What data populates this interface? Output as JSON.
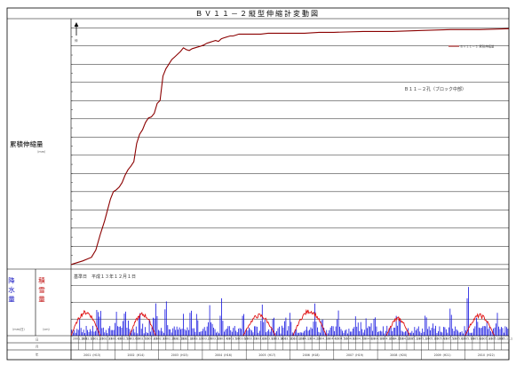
{
  "chart_data": [
    {
      "type": "line",
      "title": "ＢＶ１１－２縦型伸縮計変動図",
      "ylabel": "累積伸縮量",
      "ylabel_unit": "（mm）",
      "y_arrow_label": "伸",
      "legend": {
        "entries": [
          "ＢＶ１１－２ 累積伸縮量"
        ],
        "placement": "top-right"
      },
      "annotation": "Ｂ１１－２孔（ブロック中部）",
      "series_color": "#8b0000",
      "ylim": [
        -5,
        270
      ],
      "y_tick_step": 10,
      "grid": true,
      "series": [
        {
          "name": "ＢＶ１１－２ 累積伸縮量",
          "x": [
            0,
            4,
            8,
            11,
            14,
            17,
            20,
            23,
            25,
            27,
            29,
            31,
            33,
            35,
            37,
            39,
            41,
            43,
            45,
            47,
            49,
            51,
            53,
            55,
            57,
            59,
            61,
            63,
            65,
            67,
            69,
            71,
            73,
            75,
            77,
            79,
            81,
            83,
            85,
            87,
            89,
            91,
            93,
            95,
            97,
            99,
            101,
            103,
            105,
            107,
            109,
            111,
            113,
            115,
            118,
            121,
            125,
            130,
            135,
            140,
            145,
            150,
            155,
            160,
            170,
            180,
            200,
            220,
            240,
            260,
            280,
            300
          ],
          "values": [
            0,
            2,
            4,
            6,
            8,
            16,
            33,
            48,
            60,
            72,
            80,
            82,
            85,
            90,
            98,
            104,
            108,
            113,
            133,
            143,
            148,
            156,
            161,
            162,
            166,
            177,
            180,
            207,
            215,
            220,
            225,
            228,
            231,
            234,
            238,
            236,
            235,
            237,
            238,
            239,
            240,
            241,
            243,
            244,
            245,
            246,
            245,
            248,
            249,
            250,
            251,
            251,
            252,
            253,
            253,
            253,
            253,
            253,
            254,
            254,
            254,
            254,
            254,
            254,
            255,
            255,
            256,
            256,
            257,
            258,
            258,
            259
          ]
        }
      ]
    },
    {
      "type": "bar",
      "ylabel_left": "降水量",
      "ylabel_left_unit": "（mm/日）",
      "ylabel_right": "積雪量",
      "ylabel_right_unit": "（cm）",
      "ylim": [
        0,
        120
      ],
      "start_note": "基準日　平成１３年１２月１日",
      "series": [
        {
          "name": "降水量",
          "color": "#1010e0"
        },
        {
          "name": "積雪量",
          "color": "#e01010"
        }
      ],
      "precip_peaks": [
        {
          "x": 6,
          "v": 28
        },
        {
          "x": 18,
          "v": 62
        },
        {
          "x": 20,
          "v": 55
        },
        {
          "x": 31,
          "v": 46
        },
        {
          "x": 37,
          "v": 58
        },
        {
          "x": 47,
          "v": 50
        },
        {
          "x": 58,
          "v": 62
        },
        {
          "x": 65,
          "v": 76
        },
        {
          "x": 82,
          "v": 60
        },
        {
          "x": 95,
          "v": 55
        },
        {
          "x": 103,
          "v": 72
        },
        {
          "x": 118,
          "v": 52
        },
        {
          "x": 131,
          "v": 56
        },
        {
          "x": 150,
          "v": 44
        },
        {
          "x": 167,
          "v": 58
        },
        {
          "x": 183,
          "v": 52
        },
        {
          "x": 208,
          "v": 44
        },
        {
          "x": 225,
          "v": 44
        },
        {
          "x": 243,
          "v": 48
        },
        {
          "x": 260,
          "v": 60
        },
        {
          "x": 272,
          "v": 108
        },
        {
          "x": 278,
          "v": 40
        },
        {
          "x": 292,
          "v": 44
        }
      ],
      "snow_episodes": [
        {
          "x0": 0,
          "x1": 20,
          "peak": 42
        },
        {
          "x0": 40,
          "x1": 58,
          "peak": 38
        },
        {
          "x0": 118,
          "x1": 140,
          "peak": 36
        },
        {
          "x0": 152,
          "x1": 175,
          "peak": 44
        },
        {
          "x0": 216,
          "x1": 232,
          "peak": 30
        },
        {
          "x0": 270,
          "x1": 290,
          "peak": 36
        }
      ]
    }
  ],
  "xaxis": {
    "row_labels": [
      "日",
      "月",
      "年"
    ],
    "xlim": [
      0,
      300
    ],
    "year_labels": [
      "2001（H13）",
      "2002（H14）",
      "2003（H15）",
      "2004（H16）",
      "2005（H17）",
      "2006（H18）",
      "2007（H19）",
      "2008（H20）",
      "2009（H21）",
      "2010（H22）"
    ],
    "tick_labels": [
      "2001.12.1",
      "2002.1.1",
      "2002.2.1",
      "2002.3.1",
      "2002.4.1",
      "2002.5.1",
      "2002.6.1",
      "2002.7.1",
      "2002.8.1",
      "2002.9.1",
      "2002.10.1",
      "2002.11.1",
      "2002.12.1",
      "2003.1.1",
      "2003.2.1",
      "2003.3.1",
      "2003.4.1",
      "2003.5.1",
      "2003.6.1",
      "2003.7.1",
      "2003.8.1",
      "2003.9.1",
      "2003.10.1",
      "2003.11.1",
      "2003.12.1",
      "2004.1.1",
      "2004.2.1",
      "2004.3.1",
      "2004.4.1",
      "2004.5.1",
      "2004.6.1",
      "2004.7.1",
      "2004.8.1",
      "2004.9.1",
      "2004.10.1",
      "2004.11.1",
      "2004.12.1",
      "2005.1.1",
      "2005.2.1",
      "2005.3.1",
      "2005.4.1",
      "2005.5.1",
      "2005.6.1",
      "2005.7.1",
      "2005.8.1",
      "2005.9.1",
      "2005.10.1",
      "2005.11.1"
    ]
  }
}
